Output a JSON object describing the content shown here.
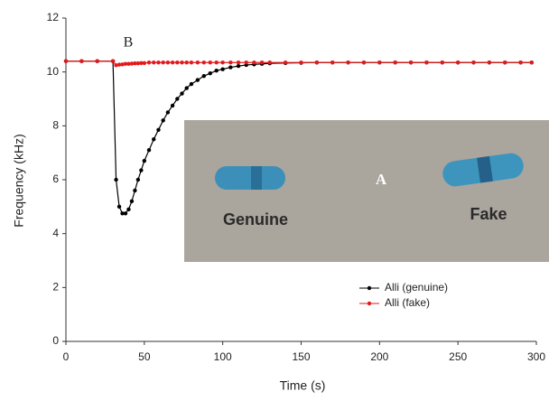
{
  "chart_data": {
    "type": "line",
    "panel_label": "B",
    "x_label": "Time (s)",
    "y_label": "Frequency (kHz)",
    "x": [
      0,
      10,
      20,
      30,
      32,
      34,
      36,
      38,
      40,
      42,
      44,
      46,
      48,
      50,
      53,
      56,
      59,
      62,
      65,
      68,
      71,
      74,
      77,
      80,
      84,
      88,
      92,
      96,
      100,
      105,
      110,
      115,
      120,
      125,
      130,
      140,
      150,
      160,
      170,
      180,
      190,
      200,
      210,
      220,
      230,
      240,
      250,
      260,
      270,
      280,
      290,
      297
    ],
    "series": [
      {
        "name": "Alli (genuine)",
        "color": "#000000",
        "values": [
          10.4,
          10.4,
          10.4,
          10.4,
          6.0,
          5.0,
          4.75,
          4.75,
          4.9,
          5.2,
          5.6,
          6.0,
          6.35,
          6.7,
          7.1,
          7.5,
          7.85,
          8.2,
          8.5,
          8.75,
          9.0,
          9.2,
          9.4,
          9.55,
          9.7,
          9.85,
          9.95,
          10.05,
          10.1,
          10.17,
          10.22,
          10.26,
          10.28,
          10.3,
          10.32,
          10.33,
          10.34,
          10.35,
          10.35,
          10.35,
          10.35,
          10.35,
          10.35,
          10.35,
          10.35,
          10.35,
          10.35,
          10.35,
          10.35,
          10.35,
          10.35,
          10.35
        ]
      },
      {
        "name": "Alli (fake)",
        "color": "#e31a1c",
        "values": [
          10.4,
          10.4,
          10.4,
          10.4,
          10.25,
          10.27,
          10.28,
          10.3,
          10.3,
          10.31,
          10.32,
          10.32,
          10.33,
          10.33,
          10.35,
          10.35,
          10.35,
          10.35,
          10.35,
          10.35,
          10.35,
          10.35,
          10.35,
          10.35,
          10.35,
          10.35,
          10.35,
          10.35,
          10.35,
          10.35,
          10.35,
          10.35,
          10.35,
          10.35,
          10.35,
          10.35,
          10.35,
          10.35,
          10.35,
          10.35,
          10.35,
          10.35,
          10.35,
          10.35,
          10.35,
          10.35,
          10.35,
          10.35,
          10.35,
          10.35,
          10.35,
          10.35
        ]
      }
    ],
    "xlim": [
      0,
      300
    ],
    "xticks": [
      0,
      50,
      100,
      150,
      200,
      250,
      300
    ],
    "ylim": [
      0,
      12
    ],
    "yticks": [
      0,
      2,
      4,
      6,
      8,
      10,
      12
    ],
    "legend": "lower right",
    "inset": {
      "label": "A",
      "genuine": "Genuine",
      "fake": "Fake"
    }
  }
}
